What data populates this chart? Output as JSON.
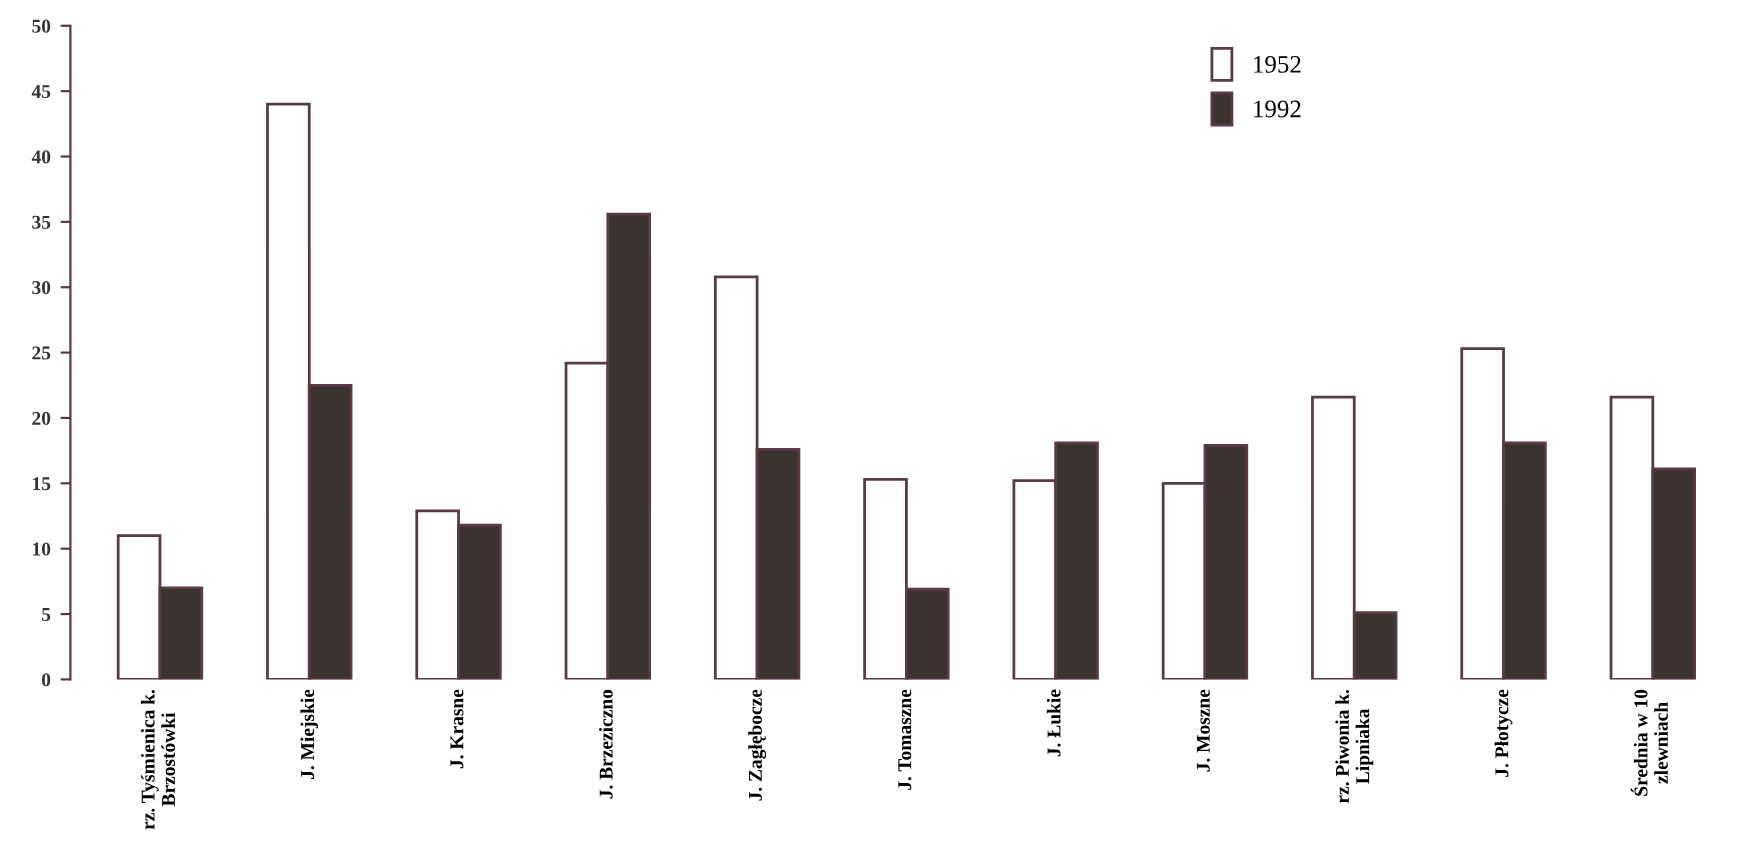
{
  "chart_data": {
    "type": "bar",
    "categories": [
      "rz. Tyśmienica k.\nBrzostówki",
      "J. Miejskie",
      "J. Krasne",
      "J. Brzeziczno",
      "J. Zagłębocze",
      "J. Tomaszne",
      "J. Łukie",
      "J. Moszne",
      "rz. Piwonia k.\nLipniaka",
      "J. Płotycze",
      "Średnia w 10\nzlewniach"
    ],
    "series": [
      {
        "name": "1952",
        "color": "#ffffff",
        "values": [
          11.0,
          44.0,
          12.9,
          24.2,
          30.8,
          15.3,
          15.2,
          15.0,
          21.6,
          25.3,
          21.6
        ]
      },
      {
        "name": "1992",
        "color": "#3a332e",
        "values": [
          7.0,
          22.5,
          11.8,
          35.6,
          17.6,
          6.9,
          18.1,
          17.9,
          5.1,
          18.1,
          16.1
        ]
      }
    ],
    "ylim": [
      0,
      50
    ],
    "yticks": [
      0,
      5,
      10,
      15,
      20,
      25,
      30,
      35,
      40,
      45,
      50
    ],
    "grid": false,
    "legend": "top right"
  }
}
